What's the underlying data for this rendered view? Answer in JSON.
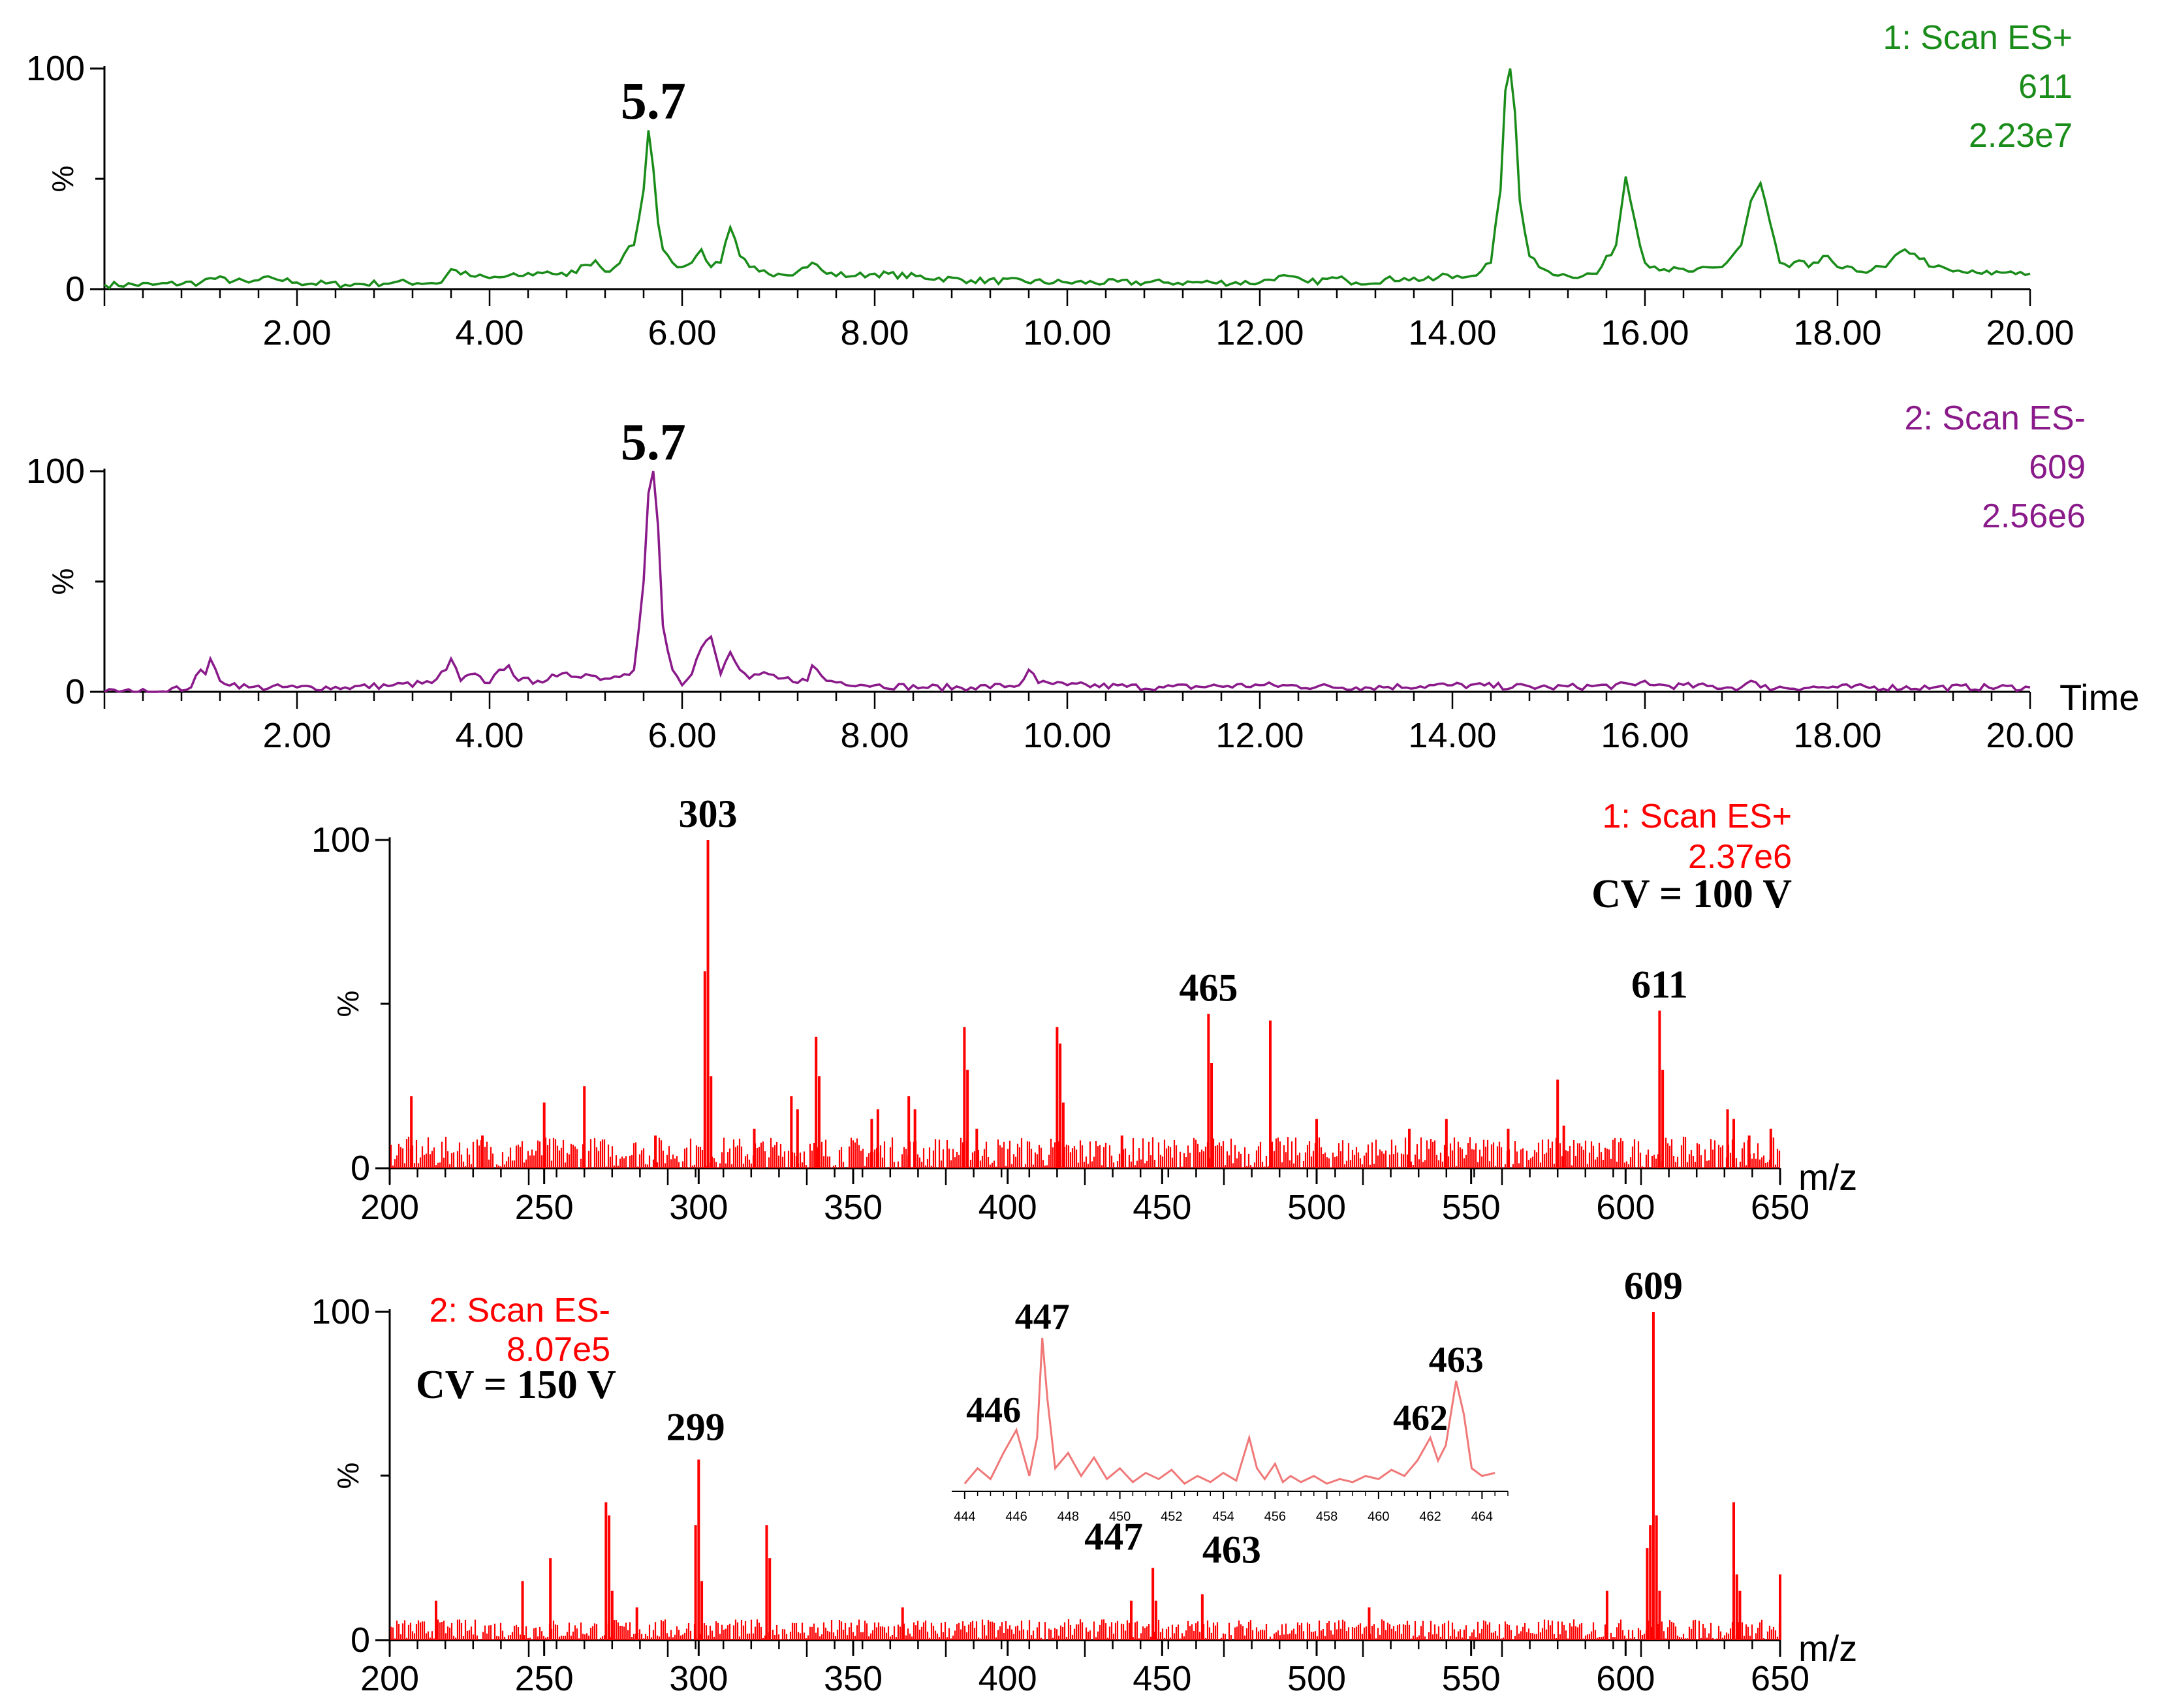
{
  "colors": {
    "plot1": "#1a8c1a",
    "plot2": "#8a1a8a",
    "spectra": "#ff0000",
    "inset": "#f07878"
  },
  "panels": [
    {
      "info": [
        "1: Scan ES+",
        "611",
        "2.23e7"
      ]
    },
    {
      "info": [
        "2: Scan ES-",
        "609",
        "2.56e6"
      ],
      "x_title": "Time"
    },
    {
      "info": [
        "1: Scan ES+",
        "2.37e6"
      ],
      "cv": "CV = 100 V",
      "x_title": "m/z"
    },
    {
      "info": [
        "2: Scan ES-",
        "8.07e5"
      ],
      "cv": "CV = 150 V",
      "x_title": "m/z"
    }
  ],
  "chart_data": [
    {
      "type": "line",
      "series": [
        {
          "name": "1: Scan ES+ 611",
          "color": "#1a8c1a",
          "x": [
            0,
            0.5,
            1.0,
            1.1,
            1.5,
            1.75,
            2.0,
            2.5,
            3.0,
            3.5,
            3.6,
            3.8,
            4.0,
            4.3,
            4.6,
            4.8,
            5.0,
            5.1,
            5.2,
            5.3,
            5.4,
            5.5,
            5.6,
            5.65,
            5.7,
            5.75,
            5.8,
            5.9,
            6.0,
            6.1,
            6.2,
            6.3,
            6.4,
            6.5,
            6.6,
            6.7,
            6.8,
            7.0,
            7.2,
            7.35,
            7.5,
            7.8,
            8.0,
            9.0,
            10.0,
            11.0,
            11.5,
            12.0,
            12.2,
            12.5,
            12.8,
            12.9,
            13.0,
            13.5,
            13.8,
            13.9,
            14.0,
            14.2,
            14.4,
            14.5,
            14.55,
            14.6,
            14.65,
            14.7,
            14.8,
            14.9,
            15.0,
            15.2,
            15.5,
            15.7,
            15.8,
            15.9,
            16.0,
            16.2,
            16.5,
            16.8,
            17.0,
            17.1,
            17.2,
            17.3,
            17.4,
            17.5,
            17.6,
            17.7,
            17.8,
            17.9,
            18.0,
            18.2,
            18.5,
            18.7,
            18.8,
            19.0,
            19.2,
            19.5,
            19.8,
            20.0
          ],
          "y": [
            2,
            2,
            3,
            5,
            3,
            5,
            3,
            2,
            3,
            3,
            9,
            6,
            5,
            6,
            8,
            6,
            11,
            13,
            8,
            10,
            16,
            20,
            45,
            72,
            55,
            30,
            18,
            12,
            10,
            12,
            18,
            10,
            12,
            28,
            15,
            10,
            8,
            7,
            8,
            12,
            7,
            6,
            7,
            4,
            3,
            3,
            3,
            3,
            6,
            3,
            5,
            4,
            3,
            5,
            4,
            7,
            5,
            6,
            12,
            45,
            90,
            100,
            80,
            40,
            15,
            10,
            8,
            6,
            7,
            20,
            51,
            30,
            12,
            9,
            8,
            10,
            20,
            40,
            48,
            30,
            12,
            10,
            13,
            10,
            12,
            15,
            10,
            8,
            10,
            18,
            16,
            10,
            8,
            7,
            8,
            7
          ]
        }
      ],
      "xlim": [
        0,
        20
      ],
      "ylim": [
        0,
        100
      ],
      "ylabel": "%",
      "x_ticks": [
        "2.00",
        "4.00",
        "6.00",
        "8.00",
        "10.00",
        "12.00",
        "14.00",
        "16.00",
        "18.00",
        "20.00"
      ],
      "y_ticks": [
        "0",
        "100"
      ],
      "annotations": [
        {
          "x": 5.7,
          "y": 72,
          "text": "5.7"
        }
      ]
    },
    {
      "type": "line",
      "series": [
        {
          "name": "2: Scan ES- 609",
          "color": "#8a1a8a",
          "x": [
            0,
            0.5,
            0.9,
            1.0,
            1.05,
            1.1,
            1.2,
            1.5,
            2.0,
            2.5,
            3.0,
            3.4,
            3.55,
            3.6,
            3.7,
            3.8,
            4.0,
            4.1,
            4.2,
            4.3,
            4.5,
            4.7,
            5.0,
            5.2,
            5.4,
            5.5,
            5.6,
            5.65,
            5.7,
            5.75,
            5.8,
            5.9,
            6.0,
            6.1,
            6.2,
            6.3,
            6.4,
            6.5,
            6.6,
            6.7,
            6.9,
            7.0,
            7.3,
            7.35,
            7.5,
            8.0,
            8.5,
            9.0,
            9.5,
            9.6,
            9.7,
            10.0,
            11.0,
            12.0,
            13.0,
            14.0,
            15.0,
            15.9,
            16.0,
            16.1,
            17.0,
            17.1,
            17.2,
            18.0,
            19.0,
            20.0
          ],
          "y": [
            0,
            0,
            2,
            10,
            8,
            15,
            5,
            2,
            2,
            2,
            3,
            4,
            10,
            15,
            5,
            8,
            4,
            10,
            12,
            5,
            5,
            7,
            8,
            6,
            8,
            10,
            50,
            90,
            100,
            75,
            30,
            10,
            3,
            8,
            20,
            25,
            8,
            18,
            10,
            6,
            8,
            6,
            5,
            12,
            5,
            3,
            2,
            2,
            3,
            10,
            4,
            3,
            2,
            3,
            2,
            3,
            2,
            3,
            5,
            3,
            2,
            5,
            2,
            2,
            2,
            2
          ]
        }
      ],
      "xlim": [
        0,
        20
      ],
      "ylim": [
        0,
        100
      ],
      "ylabel": "%",
      "xlabel": "Time",
      "x_ticks": [
        "2.00",
        "4.00",
        "6.00",
        "8.00",
        "10.00",
        "12.00",
        "14.00",
        "16.00",
        "18.00",
        "20.00"
      ],
      "y_ticks": [
        "0",
        "100"
      ],
      "annotations": [
        {
          "x": 5.7,
          "y": 100,
          "text": "5.7"
        }
      ]
    },
    {
      "type": "bar",
      "series": [
        {
          "name": "1: Scan ES+ 2.37e6",
          "color": "#ff0000",
          "x": [
            207,
            230,
            250,
            263,
            286,
            302,
            303,
            304,
            318,
            330,
            332,
            338,
            339,
            356,
            358,
            368,
            370,
            386,
            387,
            390,
            416,
            417,
            418,
            437,
            465,
            466,
            485,
            500,
            530,
            542,
            562,
            578,
            580,
            611,
            612,
            633,
            635,
            640,
            647
          ],
          "y": [
            22,
            10,
            20,
            25,
            10,
            60,
            100,
            28,
            12,
            22,
            18,
            40,
            28,
            15,
            18,
            22,
            18,
            43,
            30,
            12,
            43,
            38,
            20,
            10,
            47,
            32,
            45,
            15,
            12,
            15,
            12,
            27,
            13,
            48,
            30,
            18,
            15,
            10,
            12
          ]
        }
      ],
      "noise_level": 6,
      "xlim": [
        200,
        650
      ],
      "ylim": [
        0,
        100
      ],
      "ylabel": "%",
      "xlabel": "m/z",
      "x_ticks": [
        "200",
        "250",
        "300",
        "350",
        "400",
        "450",
        "500",
        "550",
        "600",
        "650"
      ],
      "y_ticks": [
        "0",
        "100"
      ],
      "annotations": [
        {
          "x": 303,
          "y": 100,
          "text": "303"
        },
        {
          "x": 465,
          "y": 47,
          "text": "465"
        },
        {
          "x": 611,
          "y": 48,
          "text": "611"
        }
      ]
    },
    {
      "type": "bar",
      "series": [
        {
          "name": "2: Scan ES- 8.07e5",
          "color": "#ff0000",
          "x": [
            215,
            243,
            252,
            270,
            271,
            272,
            280,
            299,
            300,
            301,
            322,
            323,
            366,
            440,
            447,
            448,
            463,
            517,
            594,
            607,
            608,
            609,
            610,
            611,
            635,
            636,
            637,
            650
          ],
          "y": [
            12,
            18,
            25,
            42,
            38,
            15,
            10,
            35,
            55,
            18,
            35,
            25,
            10,
            12,
            22,
            12,
            14,
            10,
            15,
            28,
            35,
            100,
            38,
            15,
            42,
            20,
            15,
            20
          ]
        }
      ],
      "noise_level": 4,
      "xlim": [
        200,
        650
      ],
      "ylim": [
        0,
        100
      ],
      "ylabel": "%",
      "xlabel": "m/z",
      "x_ticks": [
        "200",
        "250",
        "300",
        "350",
        "400",
        "450",
        "500",
        "550",
        "600",
        "650"
      ],
      "y_ticks": [
        "0",
        "100"
      ],
      "annotations": [
        {
          "x": 299,
          "y": 55,
          "text": "299"
        },
        {
          "x": 609,
          "y": 100,
          "text": "609"
        },
        {
          "x": 447,
          "y": 22,
          "text": "447"
        },
        {
          "x": 463,
          "y": 14,
          "text": "463"
        }
      ],
      "inset": {
        "type": "line",
        "color": "#f07878",
        "x": [
          444,
          444.5,
          445,
          445.5,
          446,
          446.5,
          446.8,
          447,
          447.2,
          447.5,
          448,
          448.5,
          449,
          449.5,
          450,
          450.5,
          451,
          451.5,
          452,
          452.5,
          453,
          453.5,
          454,
          454.5,
          455,
          455.3,
          455.6,
          456,
          456.3,
          456.6,
          457,
          457.5,
          458,
          458.5,
          459,
          459.5,
          460,
          460.5,
          461,
          461.5,
          462,
          462.3,
          462.6,
          463,
          463.3,
          463.6,
          464,
          464.5
        ],
        "y": [
          5,
          15,
          8,
          25,
          40,
          10,
          35,
          100,
          60,
          15,
          25,
          10,
          22,
          8,
          15,
          6,
          12,
          8,
          14,
          5,
          10,
          6,
          12,
          7,
          35,
          15,
          8,
          18,
          6,
          10,
          6,
          10,
          5,
          8,
          6,
          10,
          8,
          14,
          10,
          20,
          35,
          20,
          30,
          72,
          50,
          15,
          10,
          12
        ],
        "xlim": [
          443.5,
          465
        ],
        "x_ticks": [
          "444",
          "446",
          "448",
          "450",
          "452",
          "454",
          "456",
          "458",
          "460",
          "462",
          "464"
        ],
        "annotations": [
          {
            "x": 447,
            "text": "447"
          },
          {
            "x": 446,
            "text": "446"
          },
          {
            "x": 462,
            "text": "462"
          },
          {
            "x": 463,
            "text": "463"
          }
        ]
      }
    }
  ]
}
